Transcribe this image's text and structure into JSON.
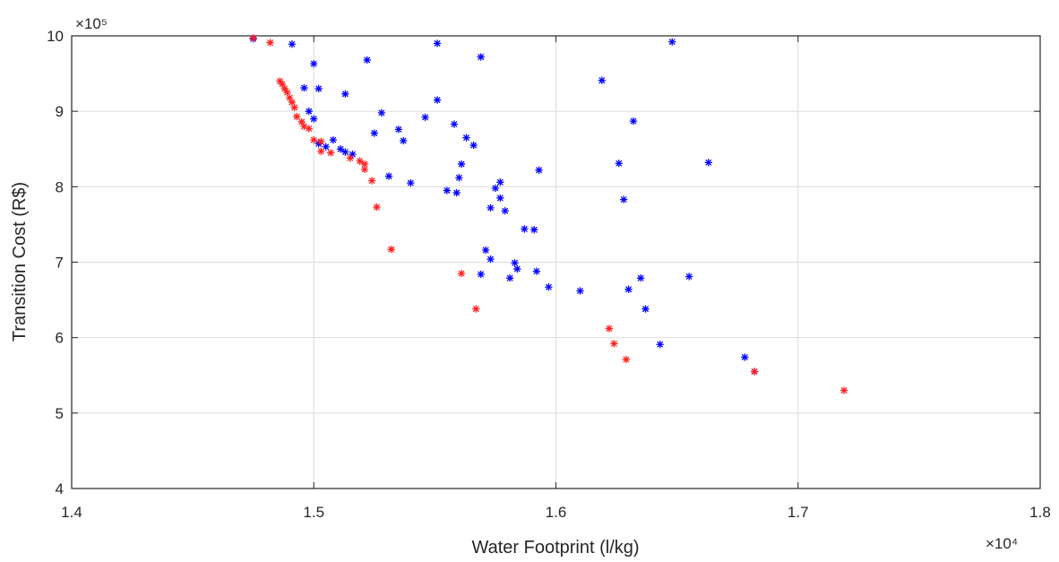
{
  "chart_data": {
    "type": "scatter",
    "title": "",
    "xlabel": "Water Footprint (l/kg)",
    "ylabel": "Transition Cost (R$)",
    "x_exponent_label": "×10⁴",
    "y_exponent_label": "×10⁵",
    "xlim": [
      1.4,
      1.8
    ],
    "ylim": [
      4,
      10
    ],
    "x_ticks": [
      1.4,
      1.5,
      1.6,
      1.7,
      1.8
    ],
    "x_tick_labels": [
      "1.4",
      "1.5",
      "1.6",
      "1.7",
      "1.8"
    ],
    "y_ticks": [
      4,
      5,
      6,
      7,
      8,
      9,
      10
    ],
    "y_tick_labels": [
      "4",
      "5",
      "6",
      "7",
      "8",
      "9",
      "10"
    ],
    "grid": true,
    "marker": "asterisk",
    "series": [
      {
        "color": "#0000ff",
        "points": [
          [
            1.475,
            9.96
          ],
          [
            1.491,
            9.89
          ],
          [
            1.551,
            9.9
          ],
          [
            1.569,
            9.72
          ],
          [
            1.648,
            9.92
          ],
          [
            1.5,
            9.63
          ],
          [
            1.522,
            9.68
          ],
          [
            1.496,
            9.31
          ],
          [
            1.502,
            9.3
          ],
          [
            1.513,
            9.23
          ],
          [
            1.551,
            9.15
          ],
          [
            1.619,
            9.41
          ],
          [
            1.498,
            9.0
          ],
          [
            1.5,
            8.9
          ],
          [
            1.528,
            8.98
          ],
          [
            1.546,
            8.92
          ],
          [
            1.558,
            8.83
          ],
          [
            1.632,
            8.87
          ],
          [
            1.525,
            8.71
          ],
          [
            1.535,
            8.76
          ],
          [
            1.537,
            8.61
          ],
          [
            1.563,
            8.65
          ],
          [
            1.566,
            8.55
          ],
          [
            1.508,
            8.62
          ],
          [
            1.502,
            8.57
          ],
          [
            1.505,
            8.53
          ],
          [
            1.511,
            8.5
          ],
          [
            1.513,
            8.46
          ],
          [
            1.516,
            8.43
          ],
          [
            1.561,
            8.3
          ],
          [
            1.626,
            8.31
          ],
          [
            1.663,
            8.32
          ],
          [
            1.593,
            8.22
          ],
          [
            1.531,
            8.14
          ],
          [
            1.54,
            8.05
          ],
          [
            1.555,
            7.95
          ],
          [
            1.559,
            7.92
          ],
          [
            1.56,
            8.12
          ],
          [
            1.575,
            7.98
          ],
          [
            1.577,
            8.06
          ],
          [
            1.577,
            7.85
          ],
          [
            1.579,
            7.68
          ],
          [
            1.573,
            7.72
          ],
          [
            1.628,
            7.83
          ],
          [
            1.587,
            7.44
          ],
          [
            1.591,
            7.43
          ],
          [
            1.571,
            7.16
          ],
          [
            1.573,
            7.04
          ],
          [
            1.569,
            6.84
          ],
          [
            1.583,
            6.99
          ],
          [
            1.584,
            6.91
          ],
          [
            1.581,
            6.79
          ],
          [
            1.592,
            6.88
          ],
          [
            1.597,
            6.67
          ],
          [
            1.61,
            6.62
          ],
          [
            1.63,
            6.64
          ],
          [
            1.635,
            6.79
          ],
          [
            1.655,
            6.81
          ],
          [
            1.637,
            6.38
          ],
          [
            1.643,
            5.91
          ],
          [
            1.678,
            5.74
          ],
          [
            1.682,
            5.55
          ]
        ]
      },
      {
        "color": "#ff2020",
        "points": [
          [
            1.475,
            9.97
          ],
          [
            1.482,
            9.91
          ],
          [
            1.486,
            9.4
          ],
          [
            1.487,
            9.36
          ],
          [
            1.488,
            9.3
          ],
          [
            1.489,
            9.25
          ],
          [
            1.49,
            9.18
          ],
          [
            1.491,
            9.12
          ],
          [
            1.492,
            9.05
          ],
          [
            1.493,
            8.93
          ],
          [
            1.495,
            8.86
          ],
          [
            1.496,
            8.8
          ],
          [
            1.498,
            8.77
          ],
          [
            1.5,
            8.62
          ],
          [
            1.503,
            8.6
          ],
          [
            1.503,
            8.47
          ],
          [
            1.507,
            8.45
          ],
          [
            1.515,
            8.38
          ],
          [
            1.519,
            8.34
          ],
          [
            1.521,
            8.3
          ],
          [
            1.521,
            8.23
          ],
          [
            1.524,
            8.08
          ],
          [
            1.526,
            7.73
          ],
          [
            1.532,
            7.17
          ],
          [
            1.561,
            6.85
          ],
          [
            1.567,
            6.38
          ],
          [
            1.622,
            6.12
          ],
          [
            1.624,
            5.92
          ],
          [
            1.629,
            5.71
          ],
          [
            1.682,
            5.55
          ],
          [
            1.719,
            5.3
          ]
        ]
      }
    ]
  }
}
